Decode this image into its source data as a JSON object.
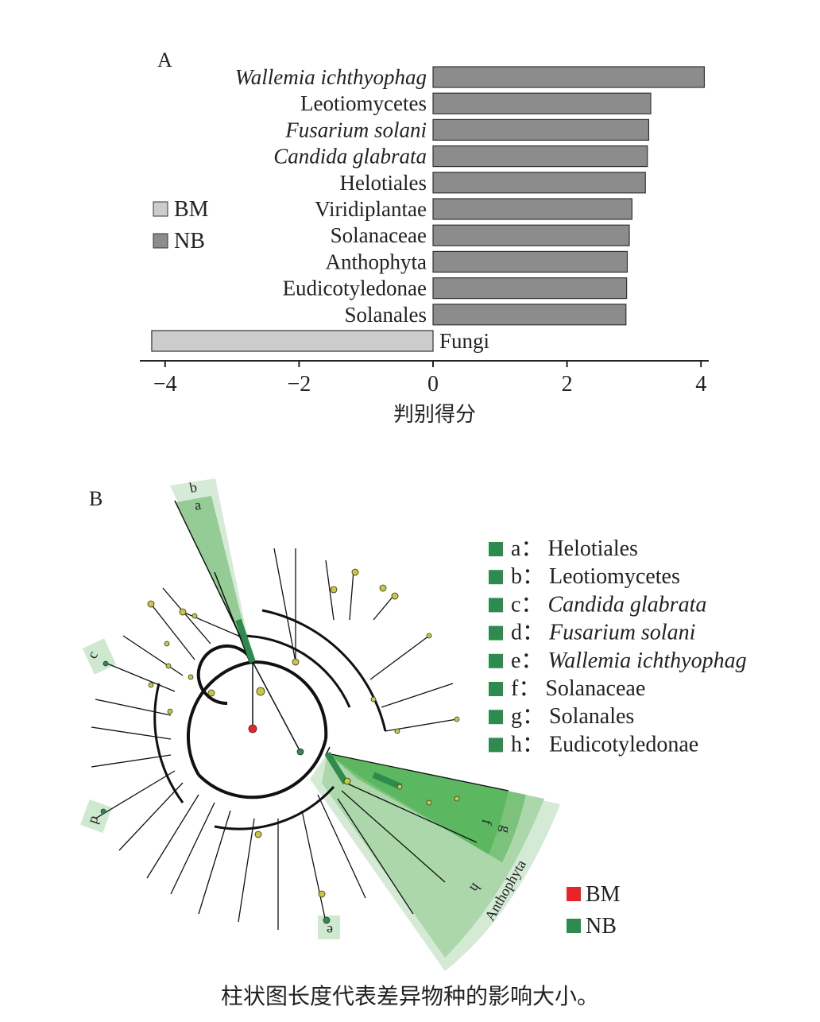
{
  "panel_a_label": "A",
  "panel_b_label": "B",
  "caption": "柱状图长度代表差异物种的影响大小。",
  "colors": {
    "bm_bar": "#cccccc",
    "nb_bar": "#8c8c8c",
    "bm_dot": "#e8242a",
    "nb_dot": "#2e8b4e",
    "node": "#c8c83a",
    "clade_dark": "#5cb860",
    "clade_mid": "#8ec98f",
    "clade_light": "#cfe8d0"
  },
  "chart_data": [
    {
      "type": "bar",
      "orientation": "horizontal",
      "xlabel": "判别得分",
      "xlim": [
        -4.2,
        4.1
      ],
      "xticks": [
        "−4",
        "−2",
        "0",
        "2",
        "4"
      ],
      "xtick_values": [
        -4,
        -2,
        0,
        2,
        4
      ],
      "legend": {
        "placement": "left",
        "entries": [
          {
            "name": "BM",
            "color": "#cccccc"
          },
          {
            "name": "NB",
            "color": "#8c8c8c"
          }
        ]
      },
      "bars": [
        {
          "label": "Wallemia ichthyophag",
          "value": 4.05,
          "group": "NB",
          "italic": true
        },
        {
          "label": "Leotiomycetes",
          "value": 3.25,
          "group": "NB",
          "italic": false
        },
        {
          "label": "Fusarium solani",
          "value": 3.22,
          "group": "NB",
          "italic": true
        },
        {
          "label": "Candida glabrata",
          "value": 3.2,
          "group": "NB",
          "italic": true
        },
        {
          "label": "Helotiales",
          "value": 3.17,
          "group": "NB",
          "italic": false
        },
        {
          "label": "Viridiplantae",
          "value": 2.97,
          "group": "NB",
          "italic": false
        },
        {
          "label": "Solanaceae",
          "value": 2.93,
          "group": "NB",
          "italic": false
        },
        {
          "label": "Anthophyta",
          "value": 2.9,
          "group": "NB",
          "italic": false
        },
        {
          "label": "Eudicotyledonae",
          "value": 2.89,
          "group": "NB",
          "italic": false
        },
        {
          "label": "Solanales",
          "value": 2.88,
          "group": "NB",
          "italic": false
        },
        {
          "label": "Fungi",
          "value": -4.2,
          "group": "BM",
          "italic": false
        }
      ]
    },
    {
      "type": "cladogram",
      "clade_legend": [
        {
          "key": "a",
          "name": "Helotiales",
          "italic": false
        },
        {
          "key": "b",
          "name": "Leotiomycetes",
          "italic": false
        },
        {
          "key": "c",
          "name": "Candida glabrata",
          "italic": true
        },
        {
          "key": "d",
          "name": "Fusarium solani",
          "italic": true
        },
        {
          "key": "e",
          "name": "Wallemia ichthyophag",
          "italic": true
        },
        {
          "key": "f",
          "name": "Solanaceae",
          "italic": false
        },
        {
          "key": "g",
          "name": "Solanales",
          "italic": false
        },
        {
          "key": "h",
          "name": "Eudicotyledonae",
          "italic": false
        }
      ],
      "clade_sep": "：",
      "group_legend": [
        {
          "name": "BM",
          "color": "#e8242a"
        },
        {
          "name": "NB",
          "color": "#2e8b4e"
        }
      ],
      "sector_labels": [
        "a",
        "b",
        "c",
        "d",
        "e",
        "f",
        "g",
        "h",
        "Anthophyta"
      ]
    }
  ]
}
